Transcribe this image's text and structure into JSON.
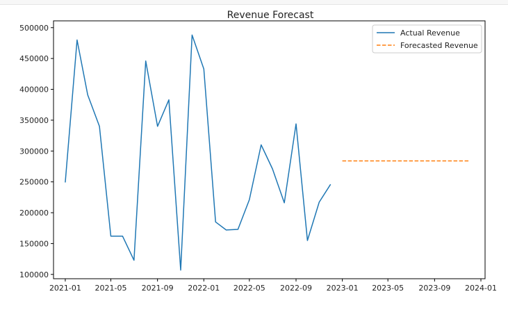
{
  "chart_data": {
    "type": "line",
    "title": "Revenue Forecast",
    "xlabel": "",
    "ylabel": "",
    "xlim": [
      "2020-12-01",
      "2024-01-12"
    ],
    "ylim": [
      93000,
      511000
    ],
    "grid": false,
    "legend_position": "top-right",
    "x_ticks": [
      "2021-01",
      "2021-05",
      "2021-09",
      "2022-01",
      "2022-05",
      "2022-09",
      "2023-01",
      "2023-05",
      "2023-09",
      "2024-01"
    ],
    "y_ticks": [
      "100000",
      "150000",
      "200000",
      "250000",
      "300000",
      "350000",
      "400000",
      "450000",
      "500000"
    ],
    "series": [
      {
        "name": "Actual Revenue",
        "color": "#1f77b4",
        "style": "solid",
        "points": [
          [
            "2021-01-01",
            249000
          ],
          [
            "2021-02-01",
            480000
          ],
          [
            "2021-03-01",
            391000
          ],
          [
            "2021-04-01",
            340000
          ],
          [
            "2021-05-01",
            162000
          ],
          [
            "2021-06-01",
            162000
          ],
          [
            "2021-07-01",
            123000
          ],
          [
            "2021-08-01",
            446000
          ],
          [
            "2021-09-01",
            340000
          ],
          [
            "2021-10-01",
            383000
          ],
          [
            "2021-11-01",
            107000
          ],
          [
            "2021-12-01",
            488000
          ],
          [
            "2022-01-01",
            433000
          ],
          [
            "2022-02-01",
            185000
          ],
          [
            "2022-03-01",
            172000
          ],
          [
            "2022-04-01",
            173000
          ],
          [
            "2022-05-01",
            221000
          ],
          [
            "2022-06-01",
            310000
          ],
          [
            "2022-07-01",
            271000
          ],
          [
            "2022-08-01",
            216000
          ],
          [
            "2022-09-01",
            344000
          ],
          [
            "2022-10-01",
            155000
          ],
          [
            "2022-11-01",
            217000
          ],
          [
            "2022-12-01",
            246000
          ]
        ]
      },
      {
        "name": "Forecasted Revenue",
        "color": "#ff7f0e",
        "style": "dashed",
        "points": [
          [
            "2023-01-01",
            284000
          ],
          [
            "2023-12-01",
            284000
          ]
        ]
      }
    ]
  }
}
